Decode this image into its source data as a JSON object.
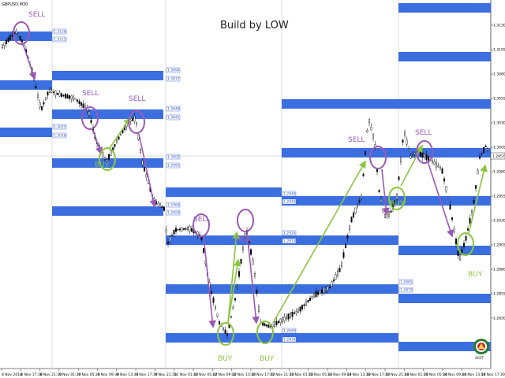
{
  "chart": {
    "symbol": "GBPUSD,M30",
    "watermark": "Build by LOW",
    "current_price": "1.2957",
    "colors": {
      "zone": "#3b6fe0",
      "sell": "#9b59b6",
      "buy": "#8cc63f",
      "candle": "#000000",
      "divider": "#c8c8c8",
      "label": "#3355cc"
    }
  },
  "price_axis": {
    "labels": [
      "1.3130",
      "1.3105",
      "1.3080",
      "1.3055",
      "1.3030",
      "1.3005",
      "1.2980",
      "1.2955",
      "1.2930",
      "1.2905",
      "1.2880",
      "1.2855",
      "1.2830"
    ]
  },
  "time_axis": {
    "labels": [
      "8 Nov 2018",
      "8 Nov 17:30",
      "8 Nov 21:30",
      "9 Nov 01:30",
      "9 Nov 05:30",
      "9 Nov 09:30",
      "9 Nov 13:30",
      "9 Nov 17:30",
      "9 Nov 21:30",
      "12 Nov 01:30",
      "12 Nov 05:30",
      "12 Nov 09:30",
      "12 Nov 13:30",
      "12 Nov 17:30",
      "12 Nov 21:30",
      "13 Nov 01:30",
      "13 Nov 05:30",
      "13 Nov 09:30",
      "13 Nov 13:30",
      "13 Nov 17:30",
      "13 Nov 21:30",
      "14 Nov 01:30",
      "14 Nov 05:30",
      "14 Nov 09:30",
      "14 Nov 13:30",
      "14 Nov 17:30"
    ]
  },
  "level_labels": [
    "1.3128",
    "1.3115",
    "1.3094",
    "1.3077",
    "1.3048",
    "1.3041",
    "1.3025",
    "1.3018",
    "1.3002",
    "1.2995",
    "1.2966",
    "1.2959",
    "1.2948",
    "1.2942",
    "1.2924",
    "1.2918",
    "1.2885",
    "1.2879",
    "1.2840",
    "1.2834"
  ],
  "annotations": [
    {
      "label": "SELL"
    },
    {
      "label": "SELL"
    },
    {
      "label": "SELL"
    },
    {
      "label": "SELL"
    },
    {
      "label": "SELL"
    },
    {
      "label": "SELL"
    },
    {
      "label": "SELL"
    },
    {
      "label": "BUY"
    },
    {
      "label": "BUY"
    },
    {
      "label": "BUY"
    },
    {
      "label": "BUY"
    },
    {
      "label": "BUY"
    },
    {
      "label": "BUY"
    }
  ],
  "logo": {
    "text": "XGCT"
  }
}
